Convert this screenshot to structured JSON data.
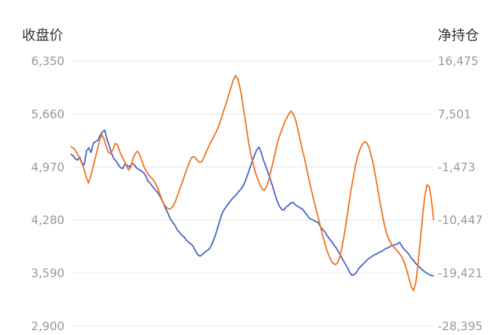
{
  "chart_data": {
    "type": "line",
    "ylabel_left": "收盘价",
    "ylabel_right": "净持仓",
    "y_left": {
      "ticks": [
        "6,350",
        "5,660",
        "4,970",
        "4,280",
        "3,590",
        "2,900"
      ],
      "range": [
        2900,
        6350
      ]
    },
    "y_right": {
      "ticks": [
        "16,475",
        "7,501",
        "-1,473",
        "-10,447",
        "-19,421",
        "-28,395"
      ],
      "range": [
        -28395,
        16475
      ]
    },
    "grid": true,
    "series": [
      {
        "axis": "left",
        "color": "#4a67c8",
        "values": [
          5140,
          5120,
          5080,
          5060,
          5100,
          5020,
          5000,
          5180,
          5220,
          5160,
          5280,
          5300,
          5320,
          5380,
          5430,
          5450,
          5330,
          5250,
          5150,
          5080,
          5050,
          5000,
          4960,
          4950,
          5010,
          4990,
          4970,
          5020,
          5000,
          4960,
          4940,
          4920,
          4900,
          4860,
          4790,
          4760,
          4720,
          4680,
          4650,
          4610,
          4550,
          4490,
          4420,
          4360,
          4290,
          4250,
          4210,
          4150,
          4120,
          4080,
          4060,
          4020,
          3990,
          3970,
          3940,
          3880,
          3830,
          3810,
          3830,
          3860,
          3880,
          3900,
          3950,
          4020,
          4100,
          4200,
          4300,
          4380,
          4430,
          4470,
          4510,
          4550,
          4580,
          4610,
          4650,
          4680,
          4720,
          4790,
          4870,
          4960,
          5040,
          5120,
          5190,
          5230,
          5160,
          5060,
          4980,
          4900,
          4810,
          4720,
          4620,
          4530,
          4460,
          4420,
          4410,
          4450,
          4470,
          4500,
          4510,
          4480,
          4460,
          4440,
          4430,
          4390,
          4350,
          4310,
          4290,
          4280,
          4260,
          4250,
          4200,
          4160,
          4130,
          4080,
          4040,
          4000,
          3960,
          3920,
          3870,
          3820,
          3760,
          3710,
          3660,
          3600,
          3560,
          3570,
          3600,
          3650,
          3680,
          3710,
          3740,
          3770,
          3790,
          3810,
          3830,
          3840,
          3860,
          3870,
          3890,
          3910,
          3920,
          3940,
          3950,
          3960,
          3970,
          3990,
          3940,
          3900,
          3870,
          3840,
          3790,
          3760,
          3720,
          3690,
          3660,
          3630,
          3610,
          3590,
          3570,
          3560,
          3550
        ]
      },
      {
        "axis": "right",
        "color": "#f07522",
        "values": [
          2000,
          1800,
          1400,
          800,
          0,
          -800,
          -1800,
          -3200,
          -4200,
          -3000,
          -1500,
          0,
          1500,
          3000,
          4000,
          3200,
          2000,
          1000,
          800,
          1500,
          2500,
          2300,
          1200,
          300,
          -400,
          -1200,
          -2000,
          -1500,
          0,
          800,
          1200,
          600,
          -500,
          -1500,
          -2200,
          -2800,
          -3200,
          -3600,
          -4200,
          -5000,
          -6000,
          -7000,
          -7800,
          -8300,
          -8600,
          -8500,
          -8100,
          -7300,
          -6300,
          -5200,
          -4200,
          -3100,
          -2000,
          -1000,
          0,
          300,
          100,
          -400,
          -700,
          -500,
          300,
          1200,
          2000,
          2800,
          3500,
          4200,
          5000,
          6000,
          7200,
          8400,
          9500,
          10800,
          12000,
          13200,
          14000,
          13500,
          12000,
          10000,
          7500,
          5000,
          2500,
          500,
          -1000,
          -2500,
          -3500,
          -4500,
          -5200,
          -5400,
          -4800,
          -3600,
          -2000,
          -500,
          1200,
          2800,
          4000,
          5000,
          6000,
          6800,
          7500,
          8000,
          7500,
          6500,
          5000,
          3200,
          1500,
          0,
          -1800,
          -3600,
          -5200,
          -6800,
          -8300,
          -9800,
          -11300,
          -12800,
          -14200,
          -15500,
          -16500,
          -17300,
          -17800,
          -18000,
          -17600,
          -16500,
          -14800,
          -12600,
          -10200,
          -7600,
          -5200,
          -3000,
          -1000,
          500,
          1600,
          2400,
          2800,
          2600,
          1800,
          500,
          -1200,
          -3200,
          -5400,
          -7600,
          -9600,
          -11400,
          -12800,
          -13800,
          -14500,
          -15000,
          -15400,
          -15800,
          -16300,
          -16900,
          -17800,
          -19000,
          -20400,
          -21800,
          -22400,
          -21000,
          -18000,
          -14000,
          -10000,
          -6500,
          -4500,
          -4800,
          -7000,
          -10500
        ]
      }
    ]
  }
}
